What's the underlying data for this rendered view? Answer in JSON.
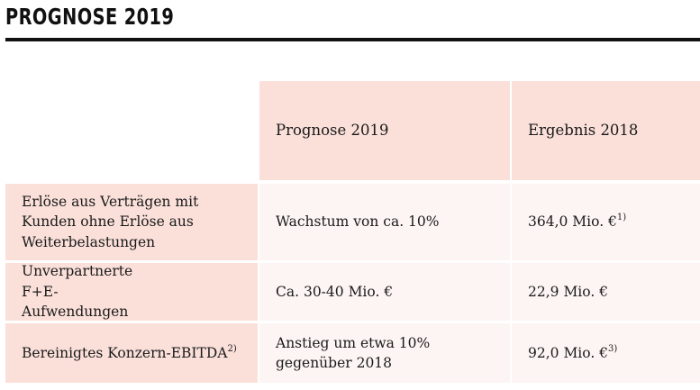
{
  "title": "PROGNOSE 2019",
  "table": {
    "headers": [
      "",
      "Prognose 2019",
      "Ergebnis 2018"
    ],
    "rows": [
      {
        "label": "Erlöse aus Verträgen mit Kunden ohne Erlöse aus Weiterbelastungen",
        "label_sup": "",
        "prognose": "Wachstum von ca. 10%",
        "ergebnis": "364,0 Mio. €",
        "ergebnis_sup": "1)"
      },
      {
        "label": "Unverpartnerte F+E-Aufwendungen",
        "label_sup": "",
        "prognose": "Ca. 30-40 Mio. €",
        "ergebnis": "22,9 Mio. €",
        "ergebnis_sup": ""
      },
      {
        "label": "Bereinigtes Konzern-EBITDA",
        "label_sup": "2)",
        "prognose": "Anstieg um etwa 10% gegenüber 2018",
        "ergebnis": "92,0 Mio. €",
        "ergebnis_sup": "3)"
      }
    ]
  },
  "colors": {
    "header_bg": "#fbe0da",
    "row_label_bg": "#fbe0da",
    "row_value_bg": "#fdf5f3",
    "rule": "#111111"
  }
}
